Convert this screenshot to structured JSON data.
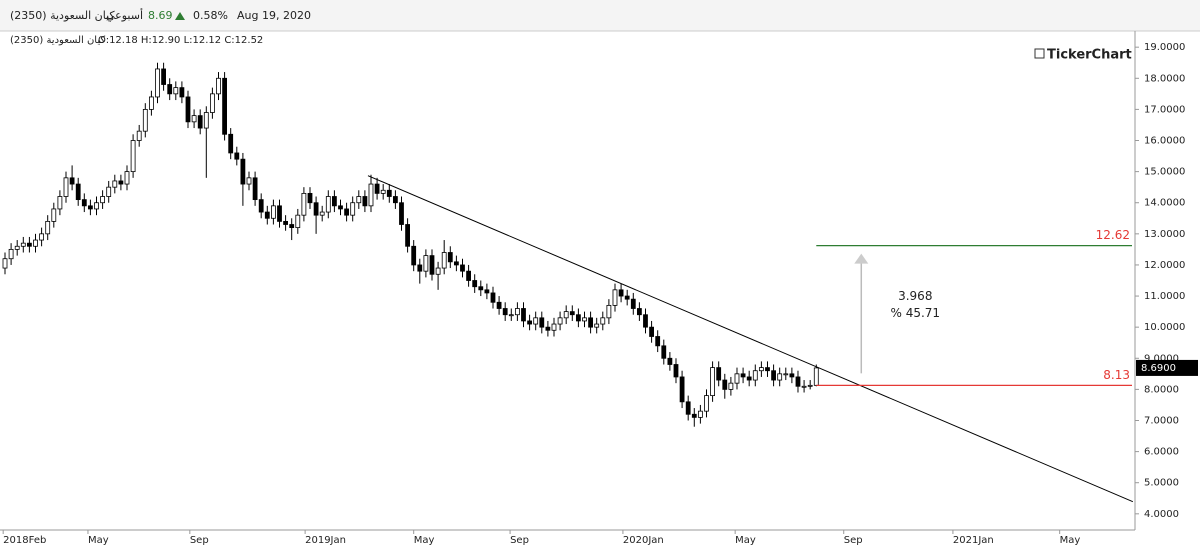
{
  "header": {
    "name": "كيان السعودية (2350)",
    "period": "أسبوعي",
    "price": "8.69",
    "change": "0.58%",
    "date": "Aug 19, 2020"
  },
  "chart_data": {
    "type": "candlestick",
    "legend_name": "كيان السعودية (2350)",
    "ohlc_text": "O:12.18 H:12.90 L:12.12 C:12.52",
    "watermark": "TickerChart",
    "x": [
      0,
      1,
      2,
      3,
      4,
      5,
      6,
      7,
      8,
      9,
      10,
      11,
      12,
      13,
      14,
      15,
      16,
      17,
      18,
      19,
      20,
      21,
      22,
      23,
      24,
      25,
      26,
      27,
      28,
      29,
      30,
      31,
      32,
      33,
      34,
      35,
      36,
      37,
      38,
      39,
      40,
      41,
      42,
      43,
      44,
      45,
      46,
      47,
      48,
      49,
      50,
      51,
      52,
      53,
      54,
      55,
      56,
      57,
      58,
      59,
      60,
      61,
      62,
      63,
      64,
      65,
      66,
      67,
      68,
      69,
      70,
      71,
      72,
      73,
      74,
      75,
      76,
      77,
      78,
      79,
      80,
      81,
      82,
      83,
      84,
      85,
      86,
      87,
      88,
      89,
      90,
      91,
      92,
      93,
      94,
      95,
      96,
      97,
      98,
      99,
      100,
      101,
      102,
      103,
      104,
      105,
      106,
      107,
      108,
      109,
      110,
      111,
      112,
      113,
      114,
      115,
      116,
      117,
      118,
      119,
      120,
      121,
      122,
      123,
      124,
      125,
      126,
      127,
      128,
      129,
      130,
      131,
      132,
      133
    ],
    "open": [
      11.9,
      12.2,
      12.5,
      12.6,
      12.7,
      12.6,
      12.8,
      13.0,
      13.4,
      13.8,
      14.2,
      14.8,
      14.6,
      14.1,
      13.9,
      13.8,
      14.0,
      14.2,
      14.5,
      14.7,
      14.6,
      15.0,
      16.0,
      16.3,
      17.0,
      17.4,
      18.3,
      17.8,
      17.5,
      17.7,
      17.4,
      16.6,
      16.8,
      16.4,
      16.9,
      17.5,
      18.0,
      16.2,
      15.6,
      15.4,
      14.6,
      14.8,
      14.1,
      13.7,
      13.5,
      13.9,
      13.4,
      13.3,
      13.2,
      13.6,
      14.3,
      14.0,
      13.6,
      13.7,
      14.2,
      13.9,
      13.8,
      13.6,
      14.0,
      14.2,
      13.9,
      14.6,
      14.3,
      14.4,
      14.2,
      14.0,
      13.3,
      12.6,
      12.0,
      11.8,
      12.3,
      11.7,
      11.9,
      12.4,
      12.1,
      12.0,
      11.8,
      11.5,
      11.3,
      11.2,
      11.1,
      10.8,
      10.6,
      10.4,
      10.4,
      10.6,
      10.2,
      10.1,
      10.3,
      10.0,
      9.9,
      10.1,
      10.3,
      10.5,
      10.4,
      10.2,
      10.3,
      10.0,
      10.1,
      10.3,
      10.7,
      11.2,
      11.0,
      10.9,
      10.6,
      10.4,
      10.0,
      9.7,
      9.4,
      9.0,
      8.8,
      8.4,
      7.6,
      7.2,
      7.1,
      7.3,
      7.8,
      8.7,
      8.3,
      8.0,
      8.2,
      8.5,
      8.4,
      8.3,
      8.6,
      8.7,
      8.6,
      8.3,
      8.5,
      8.5,
      8.4,
      8.1,
      8.1,
      8.13
    ],
    "high": [
      12.4,
      12.7,
      12.8,
      12.9,
      12.9,
      13.0,
      13.2,
      13.6,
      14.0,
      14.4,
      15.0,
      15.2,
      14.8,
      14.3,
      14.1,
      14.2,
      14.4,
      14.7,
      14.9,
      14.9,
      15.2,
      16.2,
      16.5,
      17.2,
      17.6,
      18.5,
      18.5,
      18.0,
      17.9,
      17.9,
      17.6,
      17.0,
      17.0,
      17.1,
      17.7,
      18.2,
      18.2,
      16.4,
      15.8,
      15.6,
      15.0,
      15.0,
      14.3,
      13.9,
      14.1,
      14.1,
      13.6,
      13.5,
      13.8,
      14.5,
      14.5,
      14.2,
      13.9,
      14.4,
      14.4,
      14.1,
      14.0,
      14.2,
      14.4,
      14.4,
      14.9,
      14.8,
      14.6,
      14.6,
      14.4,
      14.2,
      13.5,
      12.8,
      12.2,
      12.5,
      12.5,
      12.1,
      12.8,
      12.6,
      12.3,
      12.2,
      12.0,
      11.7,
      11.5,
      11.4,
      11.3,
      11.0,
      10.8,
      10.6,
      10.8,
      10.8,
      10.4,
      10.5,
      10.5,
      10.2,
      10.3,
      10.5,
      10.7,
      10.7,
      10.6,
      10.5,
      10.5,
      10.3,
      10.5,
      10.9,
      11.4,
      11.4,
      11.2,
      11.1,
      10.8,
      10.6,
      10.2,
      9.9,
      9.6,
      9.2,
      9.0,
      8.6,
      7.8,
      7.4,
      7.5,
      8.0,
      8.9,
      8.9,
      8.5,
      8.4,
      8.7,
      8.7,
      8.6,
      8.8,
      8.9,
      8.9,
      8.8,
      8.7,
      8.7,
      8.7,
      8.6,
      8.3,
      8.3,
      8.8
    ],
    "low": [
      11.7,
      12.0,
      12.3,
      12.4,
      12.4,
      12.4,
      12.6,
      12.8,
      13.2,
      13.6,
      14.0,
      14.4,
      13.9,
      13.7,
      13.6,
      13.6,
      13.8,
      14.0,
      14.3,
      14.4,
      14.4,
      14.8,
      15.8,
      16.1,
      16.8,
      17.2,
      17.6,
      17.3,
      17.3,
      17.2,
      16.4,
      16.4,
      16.2,
      14.8,
      16.7,
      17.3,
      16.0,
      15.4,
      15.2,
      13.9,
      14.4,
      13.9,
      13.5,
      13.3,
      13.3,
      13.2,
      13.1,
      12.8,
      13.0,
      13.4,
      13.8,
      13.0,
      13.4,
      13.5,
      13.7,
      13.6,
      13.4,
      13.4,
      13.8,
      13.7,
      13.7,
      14.1,
      14.1,
      14.0,
      13.8,
      13.1,
      12.4,
      11.8,
      11.4,
      11.6,
      11.5,
      11.2,
      11.7,
      11.9,
      11.8,
      11.6,
      11.3,
      11.1,
      11.0,
      10.9,
      10.6,
      10.4,
      10.2,
      10.2,
      10.2,
      10.0,
      9.9,
      9.9,
      9.8,
      9.7,
      9.7,
      9.9,
      10.1,
      10.2,
      10.0,
      10.0,
      9.8,
      9.8,
      9.9,
      10.1,
      10.5,
      10.8,
      10.7,
      10.4,
      10.2,
      9.8,
      9.5,
      9.2,
      8.8,
      8.6,
      8.2,
      7.4,
      7.0,
      6.8,
      6.9,
      7.1,
      7.6,
      8.1,
      7.7,
      7.8,
      8.0,
      8.2,
      8.1,
      8.1,
      8.4,
      8.4,
      8.1,
      8.1,
      8.3,
      8.2,
      7.9,
      7.9,
      8.0,
      8.1
    ],
    "close": [
      12.2,
      12.5,
      12.6,
      12.7,
      12.6,
      12.8,
      13.0,
      13.4,
      13.8,
      14.2,
      14.8,
      14.6,
      14.1,
      13.9,
      13.8,
      14.0,
      14.2,
      14.5,
      14.7,
      14.6,
      15.0,
      16.0,
      16.3,
      17.0,
      17.4,
      18.3,
      17.8,
      17.5,
      17.7,
      17.4,
      16.6,
      16.8,
      16.4,
      16.9,
      17.5,
      18.0,
      16.2,
      15.6,
      15.4,
      14.6,
      14.8,
      14.1,
      13.7,
      13.5,
      13.9,
      13.4,
      13.3,
      13.2,
      13.6,
      14.3,
      14.0,
      13.6,
      13.7,
      14.2,
      13.9,
      13.8,
      13.6,
      14.0,
      14.2,
      13.9,
      14.6,
      14.3,
      14.4,
      14.2,
      14.0,
      13.3,
      12.6,
      12.0,
      11.8,
      12.3,
      11.7,
      11.9,
      12.4,
      12.1,
      12.0,
      11.8,
      11.5,
      11.3,
      11.2,
      11.1,
      10.8,
      10.6,
      10.4,
      10.4,
      10.6,
      10.2,
      10.1,
      10.3,
      10.0,
      9.9,
      10.1,
      10.3,
      10.5,
      10.4,
      10.2,
      10.3,
      10.0,
      10.1,
      10.3,
      10.7,
      11.2,
      11.0,
      10.9,
      10.6,
      10.4,
      10.0,
      9.7,
      9.4,
      9.0,
      8.8,
      8.4,
      7.6,
      7.2,
      7.1,
      7.3,
      7.8,
      8.7,
      8.3,
      8.0,
      8.2,
      8.5,
      8.4,
      8.3,
      8.6,
      8.7,
      8.6,
      8.3,
      8.5,
      8.5,
      8.4,
      8.1,
      8.1,
      8.13,
      8.69
    ],
    "up_color": "#ffffff",
    "down_color": "#000000",
    "outline_color": "#000000",
    "xlim": [
      -0.82,
      185.25
    ],
    "xticks": [
      {
        "value": -0.3,
        "label": "2018Feb"
      },
      {
        "value": 13.6,
        "label": "May"
      },
      {
        "value": 30.3,
        "label": "Sep"
      },
      {
        "value": 49.2,
        "label": "2019Jan"
      },
      {
        "value": 67,
        "label": "May"
      },
      {
        "value": 82.8,
        "label": "Sep"
      },
      {
        "value": 101.3,
        "label": "2020Jan"
      },
      {
        "value": 119.7,
        "label": "May"
      },
      {
        "value": 137.5,
        "label": "Sep"
      },
      {
        "value": 155.4,
        "label": "2021Jan"
      },
      {
        "value": 172.9,
        "label": "May"
      }
    ],
    "ylim": [
      3.48,
      19.52
    ],
    "yticks": [
      {
        "value": 4,
        "label": "4.0000"
      },
      {
        "value": 5,
        "label": "5.0000"
      },
      {
        "value": 6,
        "label": "6.0000"
      },
      {
        "value": 7,
        "label": "7.0000"
      },
      {
        "value": 8,
        "label": "8.0000"
      },
      {
        "value": 9,
        "label": "9.0000"
      },
      {
        "value": 10,
        "label": "10.0000"
      },
      {
        "value": 11,
        "label": "11.0000"
      },
      {
        "value": 12,
        "label": "12.0000"
      },
      {
        "value": 13,
        "label": "13.0000"
      },
      {
        "value": 14,
        "label": "14.0000"
      },
      {
        "value": 15,
        "label": "15.0000"
      },
      {
        "value": 16,
        "label": "16.0000"
      },
      {
        "value": 17,
        "label": "17.0000"
      },
      {
        "value": 18,
        "label": "18.0000"
      },
      {
        "value": 19,
        "label": "19.0000"
      }
    ],
    "last_price": {
      "value": 8.69,
      "label": "8.6900"
    },
    "trendline": {
      "x": [
        59.5,
        184.9
      ],
      "y": [
        14.87,
        4.39
      ],
      "color": "#000000"
    },
    "levels": [
      {
        "value": 12.62,
        "label": "12.62",
        "color": "#2e7d32",
        "text_color": "#e53935"
      },
      {
        "value": 8.13,
        "label": "8.13",
        "color": "#e53935",
        "text_color": "#e53935"
      }
    ],
    "levels_start": 133,
    "measure": {
      "change": "3.968",
      "percent": "% 45.71"
    }
  }
}
